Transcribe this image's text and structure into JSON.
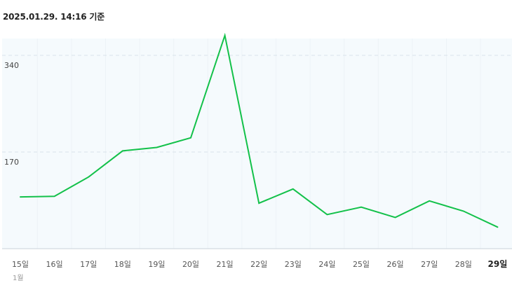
{
  "header": {
    "timestamp": "2025.01.29. 14:16 기준"
  },
  "colors": {
    "line": "#13c14a",
    "plot_background": "#f5fafd",
    "gridline": "#d9e3ea",
    "axis": "#c9d2da"
  },
  "chart_data": {
    "type": "line",
    "categories": [
      "15일",
      "16일",
      "17일",
      "18일",
      "19일",
      "20일",
      "21일",
      "22일",
      "23일",
      "24일",
      "25일",
      "26일",
      "27일",
      "28일",
      "29일"
    ],
    "series": [
      {
        "values": [
          91,
          92,
          126,
          172,
          178,
          195,
          375,
          80,
          105,
          60,
          73,
          55,
          84,
          66,
          38
        ]
      }
    ],
    "y_ticks": [
      170,
      340
    ],
    "y_tick_labels": [
      "170",
      "340"
    ],
    "month_label": "1월",
    "highlight_category": "29일",
    "ylim": [
      0,
      340
    ],
    "grid": "horizontal dashed"
  }
}
